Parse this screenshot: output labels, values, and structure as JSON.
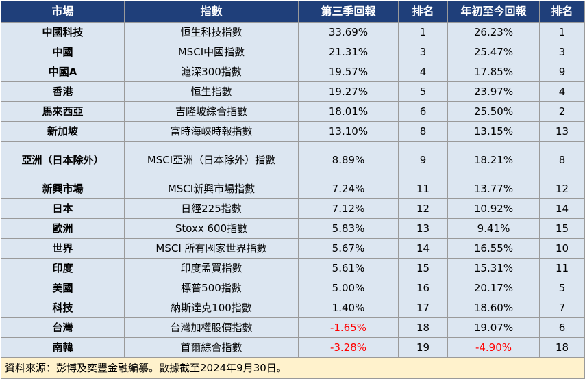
{
  "table": {
    "headers": [
      "市場",
      "指數",
      "第三季回報",
      "排名",
      "年初至今回報",
      "排名"
    ],
    "rows": [
      {
        "market": "中國科技",
        "index": "恒生科技指數",
        "q3": "33.69%",
        "q3_rank": "1",
        "ytd": "26.23%",
        "ytd_rank": "1"
      },
      {
        "market": "中國",
        "index": "MSCI中國指數",
        "q3": "21.31%",
        "q3_rank": "3",
        "ytd": "25.47%",
        "ytd_rank": "3"
      },
      {
        "market": "中國A",
        "index": "滬深300指數",
        "q3": "19.57%",
        "q3_rank": "4",
        "ytd": "17.85%",
        "ytd_rank": "9"
      },
      {
        "market": "香港",
        "index": "恒生指數",
        "q3": "19.27%",
        "q3_rank": "5",
        "ytd": "23.97%",
        "ytd_rank": "4"
      },
      {
        "market": "馬來西亞",
        "index": "吉隆坡綜合指數",
        "q3": "18.01%",
        "q3_rank": "6",
        "ytd": "25.50%",
        "ytd_rank": "2"
      },
      {
        "market": "新加坡",
        "index": "富時海峽時報指數",
        "q3": "13.10%",
        "q3_rank": "8",
        "ytd": "13.15%",
        "ytd_rank": "13"
      },
      {
        "market": "亞洲（日本除外）",
        "index": "MSCI亞洲（日本除外）指數",
        "q3": "8.89%",
        "q3_rank": "9",
        "ytd": "18.21%",
        "ytd_rank": "8"
      },
      {
        "market": "新興市場",
        "index": "MSCI新興市場指數",
        "q3": "7.24%",
        "q3_rank": "11",
        "ytd": "13.77%",
        "ytd_rank": "12"
      },
      {
        "market": "日本",
        "index": "日經225指數",
        "q3": "7.12%",
        "q3_rank": "12",
        "ytd": "10.92%",
        "ytd_rank": "14"
      },
      {
        "market": "歐洲",
        "index": "Stoxx 600指數",
        "q3": "5.83%",
        "q3_rank": "13",
        "ytd": "9.41%",
        "ytd_rank": "15"
      },
      {
        "market": "世界",
        "index": "MSCI 所有國家世界指數",
        "q3": "5.67%",
        "q3_rank": "14",
        "ytd": "16.55%",
        "ytd_rank": "10"
      },
      {
        "market": "印度",
        "index": "印度孟買指數",
        "q3": "5.61%",
        "q3_rank": "15",
        "ytd": "15.31%",
        "ytd_rank": "11"
      },
      {
        "market": "美國",
        "index": "標普500指數",
        "q3": "5.00%",
        "q3_rank": "16",
        "ytd": "20.17%",
        "ytd_rank": "5"
      },
      {
        "market": "科技",
        "index": "納斯達克100指數",
        "q3": "1.40%",
        "q3_rank": "17",
        "ytd": "18.60%",
        "ytd_rank": "7"
      },
      {
        "market": "台灣",
        "index": "台灣加權股價指數",
        "q3": "-1.65%",
        "q3_rank": "18",
        "ytd": "19.07%",
        "ytd_rank": "6"
      },
      {
        "market": "南韓",
        "index": "首爾綜合指數",
        "q3": "-3.28%",
        "q3_rank": "19",
        "ytd": "-4.90%",
        "ytd_rank": "18"
      }
    ],
    "footer": "資料來源：彭博及奕豐金融編纂。數據截至2024年9月30日。",
    "colors": {
      "header_bg": "#1f3f7a",
      "header_text": "#ffffff",
      "row_bg": "#dce6f1",
      "footer_bg": "#fff2cc",
      "negative_text": "#ff0000"
    }
  }
}
